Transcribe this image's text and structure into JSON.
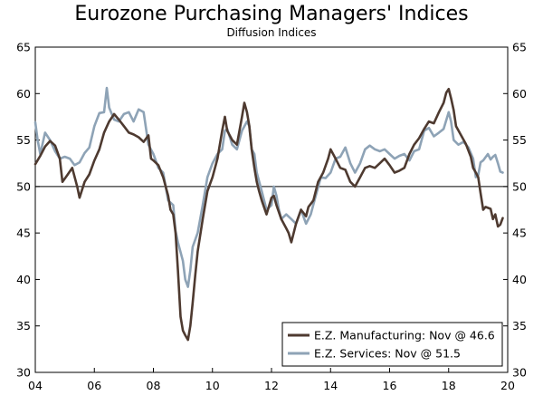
{
  "chart_data": {
    "type": "line",
    "title": "Eurozone Purchasing Managers' Indices",
    "subtitle": "Diffusion Indices",
    "xlabel": "",
    "ylabel": "",
    "xlim": [
      2004,
      2020
    ],
    "ylim": [
      30,
      65
    ],
    "reference_line": 50,
    "x_ticks": [
      2004,
      2006,
      2008,
      2010,
      2012,
      2014,
      2016,
      2018,
      2020
    ],
    "x_tick_labels": [
      "04",
      "06",
      "08",
      "10",
      "12",
      "14",
      "16",
      "18",
      "20"
    ],
    "y_ticks": [
      30,
      35,
      40,
      45,
      50,
      55,
      60,
      65
    ],
    "legend_position": "bottom-right",
    "series": [
      {
        "name": "E.Z. Manufacturing: Nov @ 46.6",
        "color": "#4e3a30",
        "points": [
          [
            2004.0,
            52.4
          ],
          [
            2004.17,
            53.3
          ],
          [
            2004.33,
            54.3
          ],
          [
            2004.5,
            54.9
          ],
          [
            2004.67,
            54.4
          ],
          [
            2004.83,
            53.0
          ],
          [
            2004.92,
            50.5
          ],
          [
            2005.08,
            51.2
          ],
          [
            2005.25,
            52.0
          ],
          [
            2005.42,
            50.0
          ],
          [
            2005.5,
            48.8
          ],
          [
            2005.67,
            50.5
          ],
          [
            2005.83,
            51.3
          ],
          [
            2006.0,
            52.8
          ],
          [
            2006.17,
            54.0
          ],
          [
            2006.33,
            55.8
          ],
          [
            2006.5,
            57.0
          ],
          [
            2006.67,
            57.8
          ],
          [
            2006.83,
            57.2
          ],
          [
            2007.0,
            56.5
          ],
          [
            2007.17,
            55.8
          ],
          [
            2007.33,
            55.6
          ],
          [
            2007.5,
            55.3
          ],
          [
            2007.67,
            54.8
          ],
          [
            2007.83,
            55.5
          ],
          [
            2007.92,
            53.0
          ],
          [
            2008.0,
            52.8
          ],
          [
            2008.17,
            52.3
          ],
          [
            2008.33,
            51.0
          ],
          [
            2008.5,
            49.0
          ],
          [
            2008.58,
            47.5
          ],
          [
            2008.67,
            47.0
          ],
          [
            2008.75,
            45.0
          ],
          [
            2008.83,
            41.0
          ],
          [
            2008.92,
            36.0
          ],
          [
            2009.0,
            34.5
          ],
          [
            2009.08,
            34.0
          ],
          [
            2009.17,
            33.5
          ],
          [
            2009.25,
            35.0
          ],
          [
            2009.33,
            37.5
          ],
          [
            2009.42,
            40.5
          ],
          [
            2009.5,
            43.0
          ],
          [
            2009.67,
            46.5
          ],
          [
            2009.83,
            49.5
          ],
          [
            2010.0,
            51.0
          ],
          [
            2010.17,
            53.0
          ],
          [
            2010.33,
            56.0
          ],
          [
            2010.42,
            57.5
          ],
          [
            2010.5,
            56.0
          ],
          [
            2010.67,
            55.0
          ],
          [
            2010.83,
            54.5
          ],
          [
            2011.0,
            57.5
          ],
          [
            2011.08,
            59.0
          ],
          [
            2011.17,
            58.0
          ],
          [
            2011.25,
            56.5
          ],
          [
            2011.33,
            54.0
          ],
          [
            2011.42,
            52.0
          ],
          [
            2011.5,
            50.5
          ],
          [
            2011.58,
            49.5
          ],
          [
            2011.67,
            48.5
          ],
          [
            2011.83,
            47.0
          ],
          [
            2012.0,
            48.8
          ],
          [
            2012.08,
            49.0
          ],
          [
            2012.17,
            48.0
          ],
          [
            2012.33,
            46.5
          ],
          [
            2012.5,
            45.5
          ],
          [
            2012.58,
            45.0
          ],
          [
            2012.67,
            44.0
          ],
          [
            2012.83,
            46.0
          ],
          [
            2013.0,
            47.5
          ],
          [
            2013.17,
            46.8
          ],
          [
            2013.25,
            47.8
          ],
          [
            2013.42,
            48.5
          ],
          [
            2013.58,
            50.5
          ],
          [
            2013.75,
            51.5
          ],
          [
            2013.92,
            53.0
          ],
          [
            2014.0,
            54.0
          ],
          [
            2014.17,
            53.0
          ],
          [
            2014.33,
            52.0
          ],
          [
            2014.5,
            51.8
          ],
          [
            2014.67,
            50.5
          ],
          [
            2014.83,
            50.0
          ],
          [
            2015.0,
            51.0
          ],
          [
            2015.17,
            52.0
          ],
          [
            2015.33,
            52.2
          ],
          [
            2015.5,
            52.0
          ],
          [
            2015.67,
            52.5
          ],
          [
            2015.83,
            53.0
          ],
          [
            2016.0,
            52.3
          ],
          [
            2016.17,
            51.5
          ],
          [
            2016.33,
            51.7
          ],
          [
            2016.5,
            52.0
          ],
          [
            2016.67,
            53.5
          ],
          [
            2016.83,
            54.5
          ],
          [
            2017.0,
            55.2
          ],
          [
            2017.17,
            56.2
          ],
          [
            2017.33,
            57.0
          ],
          [
            2017.5,
            56.8
          ],
          [
            2017.67,
            58.0
          ],
          [
            2017.83,
            59.0
          ],
          [
            2017.92,
            60.1
          ],
          [
            2018.0,
            60.5
          ],
          [
            2018.08,
            59.5
          ],
          [
            2018.17,
            58.2
          ],
          [
            2018.25,
            56.5
          ],
          [
            2018.42,
            55.5
          ],
          [
            2018.58,
            54.6
          ],
          [
            2018.75,
            53.2
          ],
          [
            2018.83,
            52.0
          ],
          [
            2018.92,
            51.5
          ],
          [
            2019.0,
            51.0
          ],
          [
            2019.08,
            49.3
          ],
          [
            2019.17,
            47.5
          ],
          [
            2019.25,
            47.8
          ],
          [
            2019.42,
            47.6
          ],
          [
            2019.5,
            46.5
          ],
          [
            2019.58,
            47.0
          ],
          [
            2019.67,
            45.7
          ],
          [
            2019.75,
            45.9
          ],
          [
            2019.83,
            46.6
          ]
        ]
      },
      {
        "name": "E.Z. Services: Nov @ 51.5",
        "color": "#8ea3b6",
        "points": [
          [
            2004.0,
            56.9
          ],
          [
            2004.08,
            55.0
          ],
          [
            2004.17,
            53.5
          ],
          [
            2004.33,
            55.8
          ],
          [
            2004.5,
            55.0
          ],
          [
            2004.67,
            53.8
          ],
          [
            2004.83,
            53.0
          ],
          [
            2005.0,
            53.2
          ],
          [
            2005.17,
            53.0
          ],
          [
            2005.33,
            52.3
          ],
          [
            2005.5,
            52.6
          ],
          [
            2005.67,
            53.6
          ],
          [
            2005.83,
            54.2
          ],
          [
            2006.0,
            56.5
          ],
          [
            2006.17,
            57.9
          ],
          [
            2006.33,
            58.0
          ],
          [
            2006.42,
            60.6
          ],
          [
            2006.5,
            58.5
          ],
          [
            2006.67,
            57.2
          ],
          [
            2006.83,
            57.0
          ],
          [
            2007.0,
            57.8
          ],
          [
            2007.17,
            58.0
          ],
          [
            2007.33,
            57.0
          ],
          [
            2007.5,
            58.3
          ],
          [
            2007.67,
            58.0
          ],
          [
            2007.83,
            54.5
          ],
          [
            2008.0,
            53.5
          ],
          [
            2008.17,
            52.0
          ],
          [
            2008.33,
            51.5
          ],
          [
            2008.5,
            48.5
          ],
          [
            2008.67,
            48.0
          ],
          [
            2008.75,
            45.2
          ],
          [
            2008.83,
            44.0
          ],
          [
            2009.0,
            42.0
          ],
          [
            2009.08,
            40.0
          ],
          [
            2009.17,
            39.2
          ],
          [
            2009.25,
            41.0
          ],
          [
            2009.33,
            43.5
          ],
          [
            2009.5,
            45.0
          ],
          [
            2009.67,
            48.0
          ],
          [
            2009.83,
            51.0
          ],
          [
            2010.0,
            52.5
          ],
          [
            2010.17,
            53.5
          ],
          [
            2010.33,
            54.0
          ],
          [
            2010.42,
            56.0
          ],
          [
            2010.5,
            56.2
          ],
          [
            2010.67,
            54.5
          ],
          [
            2010.83,
            54.0
          ],
          [
            2011.0,
            56.0
          ],
          [
            2011.17,
            57.0
          ],
          [
            2011.25,
            56.5
          ],
          [
            2011.33,
            54.0
          ],
          [
            2011.42,
            53.5
          ],
          [
            2011.5,
            51.5
          ],
          [
            2011.67,
            49.5
          ],
          [
            2011.83,
            47.5
          ],
          [
            2012.0,
            48.0
          ],
          [
            2012.08,
            50.0
          ],
          [
            2012.17,
            49.0
          ],
          [
            2012.25,
            47.5
          ],
          [
            2012.33,
            46.5
          ],
          [
            2012.5,
            47.0
          ],
          [
            2012.67,
            46.5
          ],
          [
            2012.83,
            46.0
          ],
          [
            2013.0,
            47.5
          ],
          [
            2013.17,
            46.0
          ],
          [
            2013.33,
            47.0
          ],
          [
            2013.5,
            49.0
          ],
          [
            2013.67,
            51.0
          ],
          [
            2013.83,
            50.9
          ],
          [
            2014.0,
            51.5
          ],
          [
            2014.17,
            53.0
          ],
          [
            2014.33,
            53.2
          ],
          [
            2014.5,
            54.2
          ],
          [
            2014.67,
            52.5
          ],
          [
            2014.83,
            51.5
          ],
          [
            2015.0,
            52.5
          ],
          [
            2015.17,
            54.0
          ],
          [
            2015.33,
            54.4
          ],
          [
            2015.5,
            54.0
          ],
          [
            2015.67,
            53.8
          ],
          [
            2015.83,
            54.0
          ],
          [
            2016.0,
            53.5
          ],
          [
            2016.17,
            53.0
          ],
          [
            2016.33,
            53.3
          ],
          [
            2016.5,
            53.5
          ],
          [
            2016.67,
            52.8
          ],
          [
            2016.83,
            53.8
          ],
          [
            2017.0,
            54.0
          ],
          [
            2017.17,
            56.0
          ],
          [
            2017.33,
            56.3
          ],
          [
            2017.5,
            55.4
          ],
          [
            2017.67,
            55.8
          ],
          [
            2017.83,
            56.2
          ],
          [
            2018.0,
            58.0
          ],
          [
            2018.08,
            57.0
          ],
          [
            2018.17,
            55.0
          ],
          [
            2018.33,
            54.5
          ],
          [
            2018.5,
            54.8
          ],
          [
            2018.67,
            54.2
          ],
          [
            2018.83,
            53.0
          ],
          [
            2018.92,
            51.0
          ],
          [
            2019.0,
            51.2
          ],
          [
            2019.08,
            52.6
          ],
          [
            2019.17,
            52.8
          ],
          [
            2019.33,
            53.5
          ],
          [
            2019.42,
            52.9
          ],
          [
            2019.5,
            53.2
          ],
          [
            2019.58,
            53.4
          ],
          [
            2019.67,
            52.5
          ],
          [
            2019.75,
            51.6
          ],
          [
            2019.83,
            51.5
          ]
        ]
      }
    ]
  }
}
